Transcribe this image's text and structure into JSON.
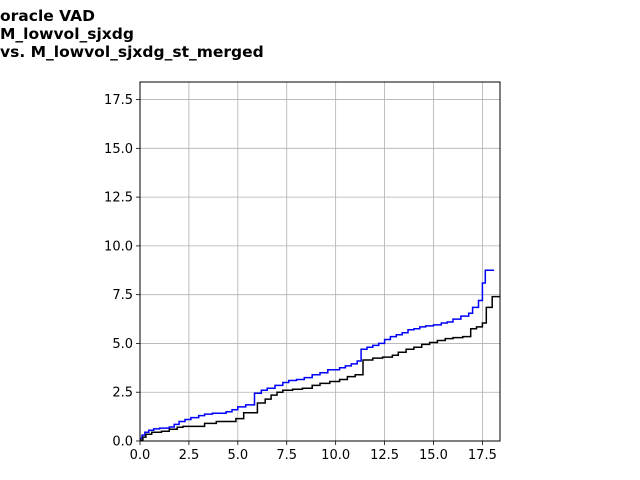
{
  "title_lines": [
    "oracle VAD",
    "M_lowvol_sjxdg",
    "vs. M_lowvol_sjxdg_st_merged"
  ],
  "chart_data": {
    "type": "line",
    "title": "oracle VAD\nM_lowvol_sjxdg\nvs. M_lowvol_sjxdg_st_merged",
    "xlabel": "",
    "ylabel": "",
    "xlim": [
      0,
      18.4
    ],
    "ylim": [
      0,
      18.4
    ],
    "grid": true,
    "legend": "none",
    "xticks": [
      "0.0",
      "2.5",
      "5.0",
      "7.5",
      "10.0",
      "12.5",
      "15.0",
      "17.5"
    ],
    "yticks": [
      "0.0",
      "2.5",
      "5.0",
      "7.5",
      "10.0",
      "12.5",
      "15.0",
      "17.5"
    ],
    "series": [
      {
        "color": "#0000ff",
        "step": true,
        "points": [
          [
            0.0,
            0.15
          ],
          [
            0.1,
            0.3
          ],
          [
            0.25,
            0.45
          ],
          [
            0.45,
            0.55
          ],
          [
            0.7,
            0.62
          ],
          [
            1.0,
            0.66
          ],
          [
            1.5,
            0.72
          ],
          [
            1.75,
            0.85
          ],
          [
            2.0,
            1.0
          ],
          [
            2.3,
            1.1
          ],
          [
            2.6,
            1.2
          ],
          [
            3.0,
            1.3
          ],
          [
            3.3,
            1.38
          ],
          [
            3.7,
            1.42
          ],
          [
            4.4,
            1.5
          ],
          [
            4.7,
            1.6
          ],
          [
            5.0,
            1.75
          ],
          [
            5.4,
            1.85
          ],
          [
            5.85,
            2.45
          ],
          [
            6.2,
            2.6
          ],
          [
            6.5,
            2.7
          ],
          [
            6.9,
            2.85
          ],
          [
            7.3,
            3.0
          ],
          [
            7.6,
            3.1
          ],
          [
            8.0,
            3.15
          ],
          [
            8.4,
            3.25
          ],
          [
            8.8,
            3.4
          ],
          [
            9.2,
            3.5
          ],
          [
            9.6,
            3.65
          ],
          [
            10.2,
            3.75
          ],
          [
            10.5,
            3.85
          ],
          [
            10.8,
            3.95
          ],
          [
            11.1,
            4.1
          ],
          [
            11.3,
            4.7
          ],
          [
            11.6,
            4.8
          ],
          [
            11.9,
            4.9
          ],
          [
            12.2,
            5.0
          ],
          [
            12.5,
            5.2
          ],
          [
            12.8,
            5.35
          ],
          [
            13.1,
            5.45
          ],
          [
            13.4,
            5.55
          ],
          [
            13.7,
            5.7
          ],
          [
            14.0,
            5.75
          ],
          [
            14.3,
            5.85
          ],
          [
            14.6,
            5.9
          ],
          [
            15.0,
            5.95
          ],
          [
            15.4,
            6.05
          ],
          [
            15.7,
            6.1
          ],
          [
            16.0,
            6.25
          ],
          [
            16.4,
            6.4
          ],
          [
            16.8,
            6.55
          ],
          [
            17.0,
            6.85
          ],
          [
            17.3,
            7.2
          ],
          [
            17.5,
            8.1
          ],
          [
            17.65,
            8.75
          ],
          [
            18.1,
            8.75
          ]
        ]
      },
      {
        "color": "#000000",
        "step": true,
        "points": [
          [
            0.0,
            0.05
          ],
          [
            0.15,
            0.2
          ],
          [
            0.3,
            0.35
          ],
          [
            0.6,
            0.45
          ],
          [
            1.1,
            0.5
          ],
          [
            1.5,
            0.6
          ],
          [
            1.9,
            0.7
          ],
          [
            2.2,
            0.75
          ],
          [
            3.3,
            0.9
          ],
          [
            3.9,
            1.0
          ],
          [
            4.9,
            1.15
          ],
          [
            5.3,
            1.45
          ],
          [
            6.0,
            1.95
          ],
          [
            6.4,
            2.15
          ],
          [
            6.7,
            2.35
          ],
          [
            7.0,
            2.5
          ],
          [
            7.3,
            2.6
          ],
          [
            7.8,
            2.65
          ],
          [
            8.3,
            2.7
          ],
          [
            8.8,
            2.85
          ],
          [
            9.2,
            2.95
          ],
          [
            9.7,
            3.05
          ],
          [
            10.2,
            3.15
          ],
          [
            10.6,
            3.3
          ],
          [
            11.0,
            3.4
          ],
          [
            11.4,
            4.15
          ],
          [
            11.9,
            4.25
          ],
          [
            12.4,
            4.3
          ],
          [
            12.9,
            4.4
          ],
          [
            13.2,
            4.55
          ],
          [
            13.6,
            4.7
          ],
          [
            14.0,
            4.8
          ],
          [
            14.4,
            4.95
          ],
          [
            14.8,
            5.05
          ],
          [
            15.2,
            5.15
          ],
          [
            15.6,
            5.25
          ],
          [
            16.0,
            5.3
          ],
          [
            16.5,
            5.35
          ],
          [
            16.9,
            5.75
          ],
          [
            17.2,
            5.85
          ],
          [
            17.5,
            6.05
          ],
          [
            17.7,
            6.85
          ],
          [
            18.0,
            7.4
          ],
          [
            18.4,
            7.4
          ]
        ]
      }
    ]
  }
}
